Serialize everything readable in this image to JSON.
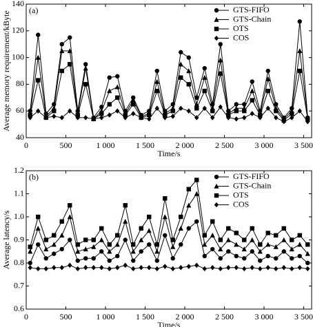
{
  "chart_data": [
    {
      "type": "line",
      "panel": "(a)",
      "y_label": "Average memory requirement/kByte",
      "x_label": "Time/s",
      "xlim": [
        0,
        3600
      ],
      "xticks": [
        0,
        500,
        {
          "value": 1000,
          "label": "1 000"
        },
        {
          "value": 1500,
          "label": "1 500"
        },
        {
          "value": 2000,
          "label": "2 000"
        },
        {
          "value": 2500,
          "label": "2 500"
        },
        {
          "value": 3000,
          "label": "3 000"
        },
        {
          "value": 3500,
          "label": "3 500"
        }
      ],
      "ylim": [
        40,
        140
      ],
      "yticks": [
        40,
        60,
        80,
        100,
        120,
        140
      ],
      "legend": "upper right",
      "x": [
        50,
        150,
        250,
        350,
        450,
        550,
        650,
        750,
        850,
        950,
        1050,
        1150,
        1250,
        1350,
        1450,
        1550,
        1650,
        1750,
        1850,
        1950,
        2050,
        2150,
        2250,
        2350,
        2450,
        2550,
        2650,
        2750,
        2850,
        2950,
        3050,
        3150,
        3250,
        3350,
        3450,
        3550
      ],
      "series": [
        {
          "name": "GTS-FIFO",
          "color": "#000000",
          "marker": "circle",
          "values": [
            60,
            117,
            58,
            65,
            110,
            115,
            60,
            95,
            55,
            63,
            85,
            86,
            60,
            70,
            57,
            60,
            90,
            60,
            65,
            104,
            100,
            70,
            92,
            65,
            110,
            60,
            65,
            65,
            82,
            60,
            90,
            65,
            55,
            62,
            127,
            55
          ]
        },
        {
          "name": "GTS-Chain",
          "color": "#000000",
          "marker": "triangle",
          "values": [
            58,
            100,
            56,
            62,
            105,
            105,
            58,
            92,
            54,
            60,
            75,
            78,
            58,
            68,
            56,
            58,
            82,
            58,
            62,
            95,
            90,
            65,
            85,
            62,
            98,
            58,
            62,
            62,
            75,
            58,
            84,
            62,
            54,
            60,
            105,
            55
          ]
        },
        {
          "name": "OTS",
          "color": "#000000",
          "marker": "square",
          "values": [
            57,
            83,
            55,
            60,
            90,
            95,
            57,
            80,
            54,
            58,
            65,
            70,
            57,
            65,
            55,
            57,
            75,
            57,
            60,
            85,
            80,
            62,
            75,
            60,
            88,
            57,
            60,
            60,
            68,
            57,
            75,
            60,
            53,
            58,
            90,
            54
          ]
        },
        {
          "name": "COS",
          "color": "#000000",
          "marker": "diamond",
          "values": [
            55,
            60,
            55,
            56,
            55,
            60,
            55,
            55,
            54,
            55,
            57,
            60,
            55,
            58,
            55,
            54,
            62,
            55,
            56,
            62,
            60,
            55,
            62,
            55,
            63,
            55,
            54,
            55,
            58,
            55,
            62,
            55,
            52,
            55,
            60,
            52
          ]
        }
      ]
    },
    {
      "type": "line",
      "panel": "(b)",
      "y_label": "Average latency/s",
      "x_label": "Time/s",
      "xlim": [
        0,
        3600
      ],
      "xticks": [
        0,
        500,
        {
          "value": 1000,
          "label": "1 000"
        },
        {
          "value": 1500,
          "label": "1 500"
        },
        {
          "value": 2000,
          "label": "2 000"
        },
        {
          "value": 2500,
          "label": "2 500"
        },
        {
          "value": 3000,
          "label": "3 000"
        },
        {
          "value": 3500,
          "label": "3 500"
        }
      ],
      "ylim": [
        0.6,
        1.2
      ],
      "yticks": [
        0.6,
        0.7,
        0.8,
        0.9,
        {
          "value": 1,
          "label": "1.0"
        },
        1.1,
        1.2
      ],
      "legend": "upper right",
      "x": [
        50,
        150,
        250,
        350,
        450,
        550,
        650,
        750,
        850,
        950,
        1050,
        1150,
        1250,
        1350,
        1450,
        1550,
        1650,
        1750,
        1850,
        1950,
        2050,
        2150,
        2250,
        2350,
        2450,
        2550,
        2650,
        2750,
        2850,
        2950,
        3050,
        3150,
        3250,
        3350,
        3450,
        3550
      ],
      "series": [
        {
          "name": "GTS-FIFO",
          "color": "#000000",
          "marker": "circle",
          "values": [
            0.8,
            0.88,
            0.82,
            0.84,
            0.86,
            0.9,
            0.81,
            0.82,
            0.82,
            0.85,
            0.81,
            0.83,
            0.9,
            0.81,
            0.85,
            0.88,
            0.81,
            0.92,
            0.82,
            0.88,
            0.95,
            0.98,
            0.83,
            0.86,
            0.82,
            0.85,
            0.83,
            0.82,
            0.85,
            0.81,
            0.83,
            0.82,
            0.85,
            0.82,
            0.83,
            0.8
          ]
        },
        {
          "name": "GTS-Chain",
          "color": "#000000",
          "marker": "triangle",
          "values": [
            0.85,
            0.95,
            0.86,
            0.88,
            0.92,
            1.0,
            0.85,
            0.86,
            0.87,
            0.9,
            0.85,
            0.88,
            0.98,
            0.85,
            0.9,
            0.94,
            0.85,
            1.0,
            0.87,
            0.95,
            1.05,
            1.1,
            0.88,
            0.92,
            0.86,
            0.9,
            0.88,
            0.86,
            0.9,
            0.85,
            0.88,
            0.87,
            0.9,
            0.86,
            0.88,
            0.84
          ]
        },
        {
          "name": "OTS",
          "color": "#000000",
          "marker": "square",
          "values": [
            0.87,
            1.0,
            0.9,
            0.92,
            0.98,
            1.05,
            0.88,
            0.9,
            0.9,
            0.95,
            0.88,
            0.92,
            1.05,
            0.88,
            0.95,
            1.0,
            0.88,
            1.08,
            0.9,
            1.0,
            1.12,
            1.16,
            0.92,
            0.98,
            0.9,
            0.95,
            0.93,
            0.9,
            0.95,
            0.88,
            0.93,
            0.92,
            0.95,
            0.9,
            0.92,
            0.88
          ]
        },
        {
          "name": "COS",
          "color": "#000000",
          "marker": "diamond",
          "values": [
            0.78,
            0.775,
            0.775,
            0.78,
            0.78,
            0.79,
            0.775,
            0.78,
            0.78,
            0.78,
            0.775,
            0.78,
            0.79,
            0.775,
            0.78,
            0.78,
            0.775,
            0.785,
            0.775,
            0.78,
            0.785,
            0.79,
            0.775,
            0.78,
            0.775,
            0.78,
            0.78,
            0.775,
            0.78,
            0.775,
            0.78,
            0.775,
            0.78,
            0.775,
            0.78,
            0.775
          ]
        }
      ]
    }
  ]
}
